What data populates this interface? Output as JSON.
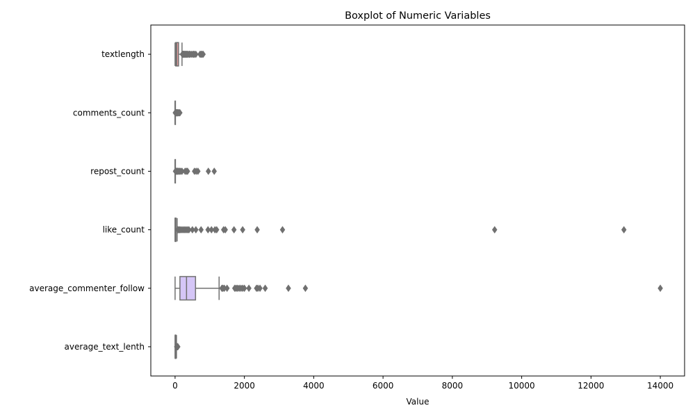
{
  "chart_data": {
    "type": "boxplot",
    "orientation": "horizontal",
    "title": "Boxplot of Numeric Variables",
    "xlabel": "Value",
    "ylabel": "",
    "xlim": [
      -700,
      14700
    ],
    "xticks": [
      0,
      2000,
      4000,
      6000,
      8000,
      10000,
      12000,
      14000
    ],
    "grid": false,
    "colors": {
      "textlength": "#ffa8a8",
      "comments_count": "#fdd59a",
      "repost_count": "#c8e89c",
      "like_count": "#a8dcd3",
      "average_commenter_follow": "#d5c6f7",
      "average_text_lenth": "#f4c2de",
      "line": "#707070"
    },
    "series": [
      {
        "name": "textlength",
        "whisker_low": 0,
        "q1": 20,
        "median": 50,
        "q3": 100,
        "whisker_high": 200,
        "outliers": [
          210,
          225,
          240,
          255,
          270,
          290,
          310,
          330,
          350,
          380,
          410,
          430,
          470,
          510,
          540,
          560,
          600,
          720,
          750,
          780,
          810
        ]
      },
      {
        "name": "comments_count",
        "whisker_low": 0,
        "q1": 0,
        "median": 0,
        "q3": 1,
        "whisker_high": 2,
        "outliers": [
          5,
          10,
          15,
          20,
          30,
          40,
          50,
          60,
          70,
          80,
          100,
          120,
          140
        ]
      },
      {
        "name": "repost_count",
        "whisker_low": 0,
        "q1": 0,
        "median": 0,
        "q3": 2,
        "whisker_high": 5,
        "outliers": [
          10,
          20,
          40,
          60,
          80,
          100,
          130,
          160,
          200,
          290,
          330,
          360,
          560,
          610,
          660,
          960,
          1130
        ]
      },
      {
        "name": "like_count",
        "whisker_low": 0,
        "q1": 2,
        "median": 8,
        "q3": 25,
        "whisker_high": 60,
        "outliers": [
          80,
          100,
          130,
          160,
          200,
          240,
          280,
          320,
          360,
          400,
          500,
          600,
          750,
          950,
          1050,
          1150,
          1200,
          1400,
          1450,
          1700,
          1950,
          2370,
          3100,
          9220,
          12950
        ]
      },
      {
        "name": "average_commenter_follow",
        "whisker_low": 0,
        "q1": 140,
        "median": 330,
        "q3": 590,
        "whisker_high": 1270,
        "outliers": [
          1350,
          1380,
          1420,
          1500,
          1720,
          1760,
          1800,
          1850,
          1900,
          1950,
          2000,
          2130,
          2350,
          2390,
          2450,
          2600,
          3270,
          3760,
          14000
        ]
      },
      {
        "name": "average_text_lenth",
        "whisker_low": 0,
        "q1": 5,
        "median": 12,
        "q3": 22,
        "whisker_high": 40,
        "outliers": [
          45,
          50,
          55,
          60,
          65,
          70,
          75,
          80
        ]
      }
    ]
  }
}
